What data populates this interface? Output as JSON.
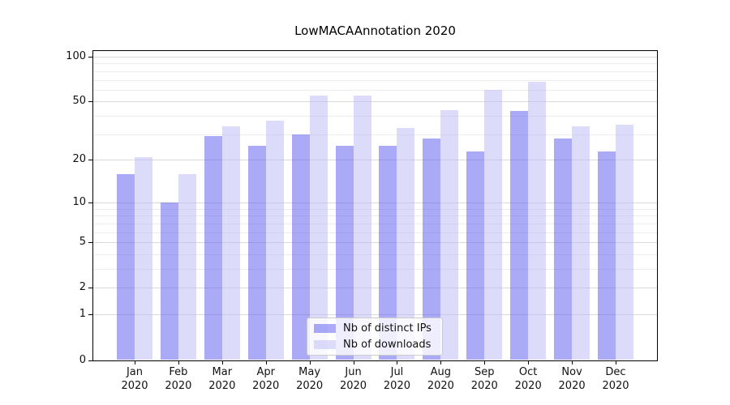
{
  "chart_data": {
    "type": "bar",
    "title": "LowMACAAnnotation 2020",
    "categories": [
      "Jan 2020",
      "Feb 2020",
      "Mar 2020",
      "Apr 2020",
      "May 2020",
      "Jun 2020",
      "Jul 2020",
      "Aug 2020",
      "Sep 2020",
      "Oct 2020",
      "Nov 2020",
      "Dec 2020"
    ],
    "series": [
      {
        "name": "Nb of distinct IPs",
        "color": "#5555ef",
        "fill_alpha": 0.5,
        "values": [
          16,
          10,
          29,
          25,
          30,
          25,
          25,
          28,
          23,
          43,
          28,
          23
        ]
      },
      {
        "name": "Nb of downloads",
        "color": "#b9b9f5",
        "fill_alpha": 0.5,
        "values": [
          21,
          16,
          34,
          37,
          55,
          55,
          33,
          44,
          60,
          68,
          34,
          35
        ]
      }
    ],
    "xlabel": "",
    "ylabel": "",
    "yscale": "log1p",
    "ylim": [
      0,
      112
    ],
    "yticks": [
      0,
      1,
      2,
      5,
      10,
      20,
      50,
      100
    ],
    "ytick_labels": [
      "0",
      "1",
      "2",
      "5",
      "10",
      "20",
      "50",
      "100"
    ],
    "minor_yticks": [
      3,
      4,
      6,
      7,
      8,
      9,
      30,
      40,
      60,
      70,
      80,
      90
    ],
    "grid": true,
    "legend_position": "lower center"
  },
  "colors": {
    "background": "#ffffff",
    "axis": "#000000",
    "text": "#111111",
    "grid_major": "#d9d9d9",
    "grid_minor": "#ececec",
    "legend_border": "#cccccc"
  }
}
